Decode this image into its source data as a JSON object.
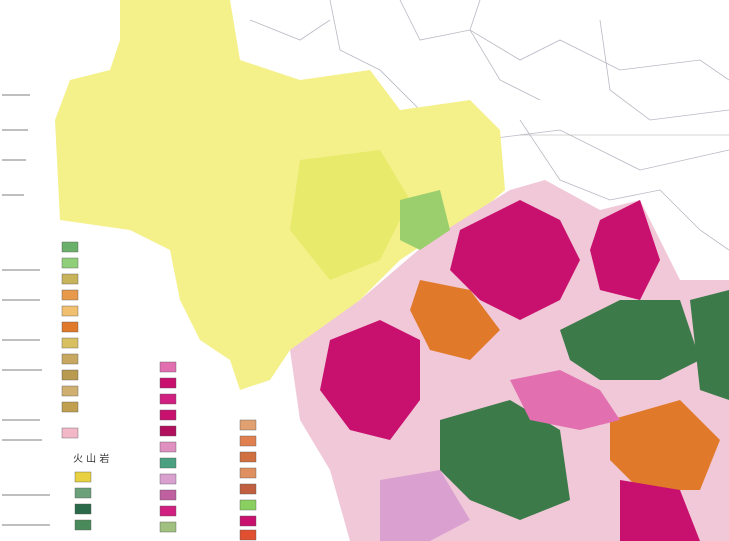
{
  "map": {
    "legend_heading": "火 山 岩"
  }
}
